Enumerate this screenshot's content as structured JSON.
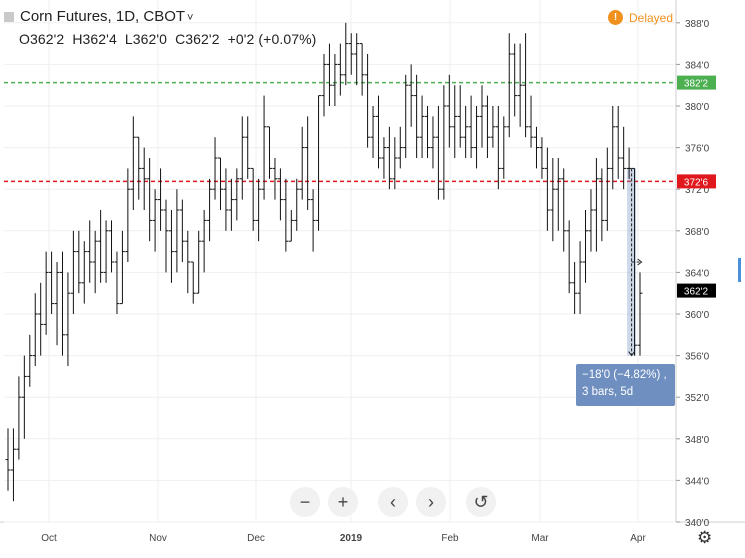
{
  "header": {
    "symbol": "Corn Futures, 1D, CBOT",
    "ohlc": [
      "O362'2",
      "H362'4",
      "L362'0",
      "C362'2",
      "+0'2 (+0.07%)"
    ],
    "status": "Delayed"
  },
  "toolbar": {
    "buttons": [
      "−",
      "+",
      "‹",
      "›",
      "↺"
    ]
  },
  "measure": {
    "line1": "−18'0 (−4.82%) ,",
    "line2": "3 bars, 5d"
  },
  "colors": {
    "green_line": "#4caf50",
    "red_line": "#e0181d",
    "measure": "#6f8fc0",
    "bars": "#111111"
  },
  "chart_data": {
    "type": "ohlc",
    "title": "Corn Futures, 1D, CBOT",
    "x_labels": [
      "Oct",
      "Nov",
      "Dec",
      "2019",
      "Feb",
      "Mar",
      "Apr"
    ],
    "y_labels": [
      "388'0",
      "384'0",
      "380'0",
      "376'0",
      "372'0",
      "368'0",
      "364'0",
      "360'0",
      "356'0",
      "352'0",
      "348'0",
      "344'0",
      "340'0"
    ],
    "ylim": [
      340,
      389
    ],
    "price_tags": [
      {
        "label": "382'2",
        "value": 382.25,
        "color": "#4caf50",
        "line": "green dashed"
      },
      {
        "label": "372'6",
        "value": 372.75,
        "color": "#e0181d",
        "line": "red dashed"
      },
      {
        "label": "362'2",
        "value": 362.25,
        "color": "#000000"
      }
    ],
    "measure_range": {
      "from": 374,
      "to": 356,
      "change": "−18'0",
      "percent": "−4.82%",
      "bars": 3,
      "days": "5d"
    },
    "bars": [
      [
        346,
        349,
        343,
        345
      ],
      [
        345,
        349,
        342,
        347
      ],
      [
        347,
        354,
        346,
        352
      ],
      [
        352,
        356,
        348,
        354
      ],
      [
        354,
        358,
        353,
        356
      ],
      [
        356,
        362,
        355,
        360
      ],
      [
        360,
        363,
        356,
        359
      ],
      [
        359,
        366,
        358,
        364
      ],
      [
        364,
        366,
        360,
        361
      ],
      [
        361,
        365,
        357,
        364
      ],
      [
        364,
        366,
        356,
        358
      ],
      [
        358,
        364,
        355,
        362
      ],
      [
        362,
        368,
        360,
        366
      ],
      [
        366,
        368,
        362,
        363
      ],
      [
        363,
        367,
        361,
        366
      ],
      [
        366,
        369,
        363,
        365
      ],
      [
        365,
        368,
        362,
        367
      ],
      [
        367,
        370,
        363,
        364
      ],
      [
        364,
        369,
        363,
        368
      ],
      [
        368,
        369,
        364,
        365
      ],
      [
        365,
        366,
        360,
        361
      ],
      [
        361,
        368,
        361,
        366
      ],
      [
        366,
        374,
        365,
        372
      ],
      [
        372,
        379,
        370,
        377
      ],
      [
        377,
        377,
        371,
        374
      ],
      [
        374,
        376,
        370,
        373
      ],
      [
        373,
        375,
        367,
        369
      ],
      [
        369,
        372,
        366,
        371
      ],
      [
        371,
        374,
        368,
        370
      ],
      [
        370,
        371,
        364,
        368
      ],
      [
        368,
        370,
        363,
        366
      ],
      [
        366,
        372,
        364,
        370
      ],
      [
        370,
        371,
        365,
        367
      ],
      [
        367,
        368,
        362,
        365
      ],
      [
        365,
        365,
        361,
        362
      ],
      [
        362,
        368,
        362,
        367
      ],
      [
        367,
        370,
        364,
        369
      ],
      [
        369,
        373,
        367,
        372
      ],
      [
        372,
        377,
        371,
        375
      ],
      [
        375,
        375,
        370,
        372
      ],
      [
        372,
        374,
        368,
        370
      ],
      [
        370,
        373,
        368,
        371
      ],
      [
        371,
        374,
        369,
        373
      ],
      [
        373,
        379,
        371,
        377
      ],
      [
        377,
        379,
        373,
        374
      ],
      [
        374,
        374,
        368,
        369
      ],
      [
        369,
        373,
        367,
        372
      ],
      [
        372,
        381,
        371,
        378
      ],
      [
        378,
        378,
        373,
        374
      ],
      [
        374,
        375,
        371,
        373
      ],
      [
        373,
        374,
        369,
        371
      ],
      [
        371,
        373,
        366,
        367
      ],
      [
        367,
        370,
        367,
        369
      ],
      [
        369,
        373,
        368,
        372
      ],
      [
        372,
        378,
        371,
        376
      ],
      [
        376,
        379,
        370,
        371
      ],
      [
        371,
        372,
        366,
        369
      ],
      [
        369,
        381,
        368,
        381
      ],
      [
        381,
        385,
        379,
        384
      ],
      [
        384,
        386,
        380,
        382
      ],
      [
        382,
        385,
        380,
        384
      ],
      [
        384,
        386,
        381,
        383
      ],
      [
        383,
        388,
        382,
        386
      ],
      [
        386,
        387,
        383,
        385
      ],
      [
        385,
        387,
        382,
        386
      ],
      [
        386,
        386,
        381,
        383
      ],
      [
        383,
        385,
        376,
        377
      ],
      [
        377,
        380,
        375,
        379
      ],
      [
        379,
        381,
        374,
        375
      ],
      [
        375,
        377,
        373,
        376
      ],
      [
        376,
        378,
        372,
        373
      ],
      [
        373,
        377,
        372,
        375
      ],
      [
        375,
        378,
        374,
        376
      ],
      [
        376,
        383,
        375,
        382
      ],
      [
        382,
        384,
        378,
        381
      ],
      [
        381,
        383,
        375,
        377
      ],
      [
        377,
        381,
        375,
        379
      ],
      [
        379,
        380,
        375,
        376
      ],
      [
        376,
        379,
        374,
        377
      ],
      [
        377,
        380,
        371,
        372
      ],
      [
        372,
        382,
        371,
        380
      ],
      [
        380,
        383,
        376,
        378
      ],
      [
        378,
        382,
        375,
        379
      ],
      [
        379,
        382,
        376,
        377
      ],
      [
        377,
        380,
        375,
        378
      ],
      [
        378,
        381,
        375,
        376
      ],
      [
        376,
        380,
        374,
        379
      ],
      [
        379,
        382,
        376,
        380
      ],
      [
        380,
        381,
        375,
        377
      ],
      [
        377,
        380,
        376,
        378
      ],
      [
        378,
        380,
        372,
        374
      ],
      [
        374,
        379,
        373,
        378
      ],
      [
        378,
        387,
        377,
        385
      ],
      [
        385,
        386,
        379,
        381
      ],
      [
        381,
        386,
        378,
        382
      ],
      [
        382,
        387,
        377,
        378
      ],
      [
        378,
        381,
        376,
        377
      ],
      [
        377,
        378,
        374,
        376
      ],
      [
        376,
        377,
        373,
        374
      ],
      [
        374,
        376,
        368,
        370
      ],
      [
        370,
        375,
        367,
        372
      ],
      [
        372,
        375,
        368,
        373
      ],
      [
        373,
        374,
        366,
        368
      ],
      [
        368,
        369,
        362,
        363
      ],
      [
        363,
        365,
        360,
        362
      ],
      [
        362,
        367,
        360,
        365
      ],
      [
        365,
        370,
        363,
        368
      ],
      [
        368,
        372,
        366,
        370
      ],
      [
        370,
        375,
        366,
        373
      ],
      [
        373,
        374,
        367,
        369
      ],
      [
        369,
        376,
        368,
        374
      ],
      [
        374,
        380,
        372,
        378
      ],
      [
        378,
        380,
        373,
        375
      ],
      [
        375,
        378,
        372,
        374
      ],
      [
        374,
        376,
        373,
        374
      ],
      [
        374,
        374,
        356,
        357
      ],
      [
        357,
        364,
        356,
        362
      ]
    ]
  }
}
